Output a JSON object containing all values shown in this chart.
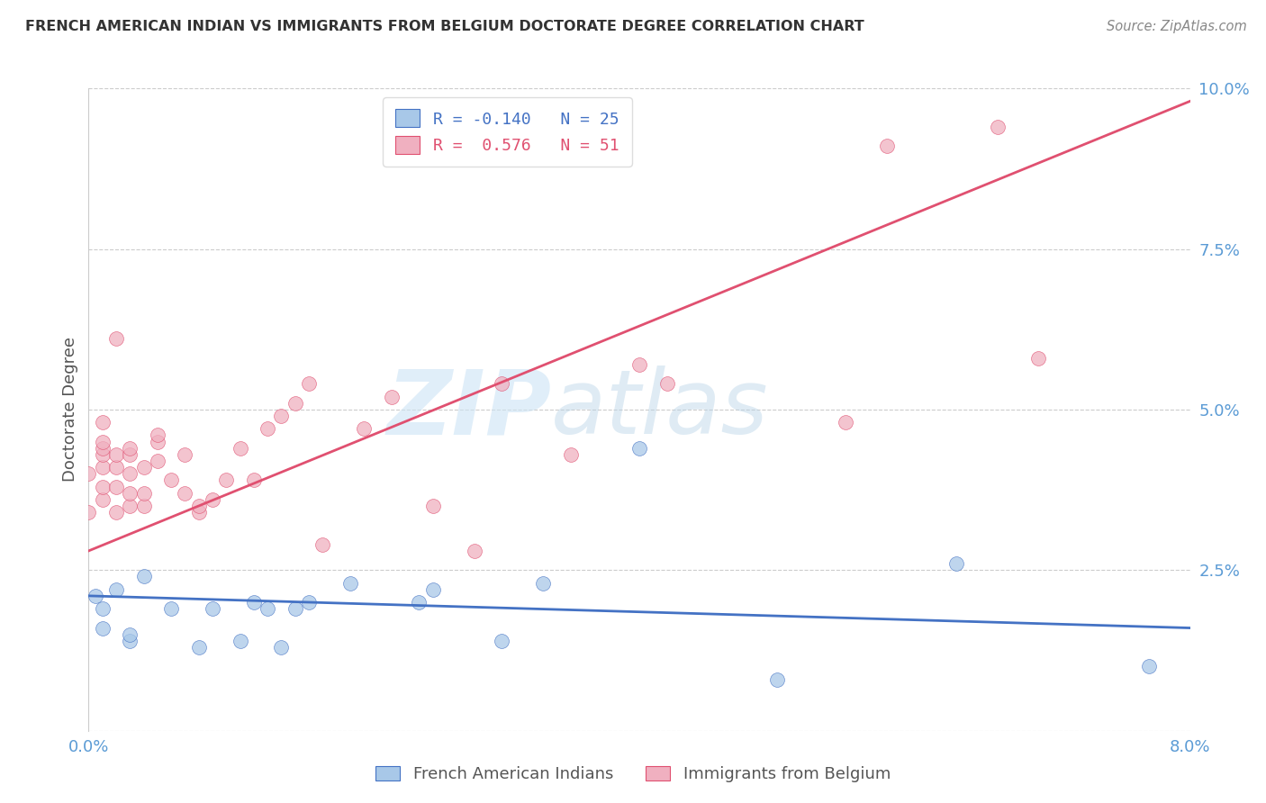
{
  "title": "FRENCH AMERICAN INDIAN VS IMMIGRANTS FROM BELGIUM DOCTORATE DEGREE CORRELATION CHART",
  "source": "Source: ZipAtlas.com",
  "ylabel": "Doctorate Degree",
  "xlim": [
    0.0,
    0.08
  ],
  "ylim": [
    0.0,
    0.1
  ],
  "xticks": [
    0.0,
    0.01,
    0.02,
    0.03,
    0.04,
    0.05,
    0.06,
    0.07,
    0.08
  ],
  "xticklabels": [
    "0.0%",
    "",
    "",
    "",
    "",
    "",
    "",
    "",
    "8.0%"
  ],
  "yticks": [
    0.0,
    0.025,
    0.05,
    0.075,
    0.1
  ],
  "yticklabels": [
    "",
    "2.5%",
    "5.0%",
    "7.5%",
    "10.0%"
  ],
  "color_blue": "#a8c8e8",
  "color_pink": "#f0b0c0",
  "trendline_blue": "#4472c4",
  "trendline_pink": "#e05070",
  "watermark_zip": "ZIP",
  "watermark_atlas": "atlas",
  "blue_x": [
    0.0005,
    0.001,
    0.001,
    0.002,
    0.003,
    0.003,
    0.004,
    0.006,
    0.008,
    0.009,
    0.011,
    0.012,
    0.013,
    0.014,
    0.015,
    0.016,
    0.019,
    0.024,
    0.025,
    0.03,
    0.033,
    0.04,
    0.05,
    0.063,
    0.077
  ],
  "blue_y": [
    0.021,
    0.019,
    0.016,
    0.022,
    0.014,
    0.015,
    0.024,
    0.019,
    0.013,
    0.019,
    0.014,
    0.02,
    0.019,
    0.013,
    0.019,
    0.02,
    0.023,
    0.02,
    0.022,
    0.014,
    0.023,
    0.044,
    0.008,
    0.026,
    0.01
  ],
  "pink_x": [
    0.0,
    0.0,
    0.001,
    0.001,
    0.001,
    0.001,
    0.001,
    0.001,
    0.001,
    0.002,
    0.002,
    0.002,
    0.002,
    0.002,
    0.003,
    0.003,
    0.003,
    0.003,
    0.003,
    0.004,
    0.004,
    0.004,
    0.005,
    0.005,
    0.005,
    0.006,
    0.007,
    0.007,
    0.008,
    0.008,
    0.009,
    0.01,
    0.011,
    0.012,
    0.013,
    0.014,
    0.015,
    0.016,
    0.017,
    0.02,
    0.022,
    0.025,
    0.028,
    0.03,
    0.035,
    0.04,
    0.042,
    0.055,
    0.058,
    0.066,
    0.069
  ],
  "pink_y": [
    0.034,
    0.04,
    0.036,
    0.038,
    0.041,
    0.043,
    0.044,
    0.045,
    0.048,
    0.034,
    0.038,
    0.041,
    0.043,
    0.061,
    0.035,
    0.037,
    0.04,
    0.043,
    0.044,
    0.035,
    0.037,
    0.041,
    0.042,
    0.045,
    0.046,
    0.039,
    0.037,
    0.043,
    0.034,
    0.035,
    0.036,
    0.039,
    0.044,
    0.039,
    0.047,
    0.049,
    0.051,
    0.054,
    0.029,
    0.047,
    0.052,
    0.035,
    0.028,
    0.054,
    0.043,
    0.057,
    0.054,
    0.048,
    0.091,
    0.094,
    0.058
  ],
  "blue_trend_x": [
    0.0,
    0.08
  ],
  "blue_trend_y": [
    0.021,
    0.016
  ],
  "pink_trend_x": [
    0.0,
    0.08
  ],
  "pink_trend_y": [
    0.028,
    0.098
  ]
}
